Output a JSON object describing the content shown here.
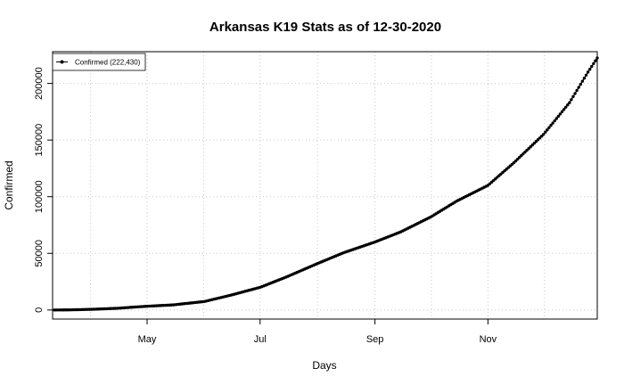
{
  "chart_data": {
    "type": "line",
    "title": "Arkansas K19 Stats as of 12-30-2020",
    "xlabel": "Days",
    "ylabel": "Confirmed",
    "x_range": [
      "2020-03-11",
      "2020-12-30"
    ],
    "ylim": [
      -8000,
      228000
    ],
    "x_ticks": [
      {
        "date": "2020-05-01",
        "label": "May"
      },
      {
        "date": "2020-07-01",
        "label": "Jul"
      },
      {
        "date": "2020-09-01",
        "label": "Sep"
      },
      {
        "date": "2020-11-01",
        "label": "Nov"
      }
    ],
    "y_ticks": [
      0,
      50000,
      100000,
      150000,
      200000
    ],
    "grid": true,
    "legend_position": "top-left",
    "series": [
      {
        "name": "Confirmed (222,430)",
        "color": "#000000",
        "points": [
          [
            "2020-03-12",
            0
          ],
          [
            "2020-03-20",
            100
          ],
          [
            "2020-04-01",
            600
          ],
          [
            "2020-04-15",
            1500
          ],
          [
            "2020-04-26",
            2800
          ],
          [
            "2020-05-01",
            3300
          ],
          [
            "2020-05-15",
            4500
          ],
          [
            "2020-06-01",
            7500
          ],
          [
            "2020-06-15",
            13000
          ],
          [
            "2020-07-01",
            20000
          ],
          [
            "2020-07-15",
            29000
          ],
          [
            "2020-08-01",
            41000
          ],
          [
            "2020-08-15",
            50500
          ],
          [
            "2020-09-01",
            60000
          ],
          [
            "2020-09-15",
            69000
          ],
          [
            "2020-10-01",
            82000
          ],
          [
            "2020-10-15",
            96000
          ],
          [
            "2020-11-01",
            110000
          ],
          [
            "2020-11-15",
            130000
          ],
          [
            "2020-12-01",
            155000
          ],
          [
            "2020-12-15",
            183000
          ],
          [
            "2020-12-25",
            210000
          ],
          [
            "2020-12-30",
            222430
          ]
        ]
      }
    ]
  }
}
